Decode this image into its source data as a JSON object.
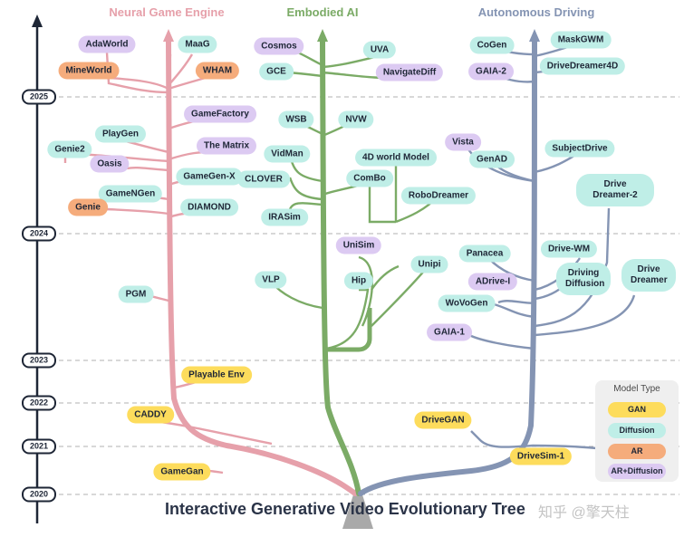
{
  "title": "Interactive Generative Video Evolutionary Tree",
  "watermark": "知乎 @擎天柱",
  "branches": {
    "neural": {
      "title": "Neural Game Engine",
      "color": "#e6a0aa"
    },
    "embodied": {
      "title": "Embodied AI",
      "color": "#7bab66"
    },
    "driving": {
      "title": "Autonomous Driving",
      "color": "#8494b3"
    }
  },
  "years": [
    "2025",
    "2024",
    "2023",
    "2022",
    "2021",
    "2020"
  ],
  "legend": {
    "title": "Model Type",
    "items": [
      {
        "label": "GAN",
        "type": "gan"
      },
      {
        "label": "Diffusion",
        "type": "diffusion"
      },
      {
        "label": "AR",
        "type": "ar"
      },
      {
        "label": "AR+Diffusion",
        "type": "ardiff"
      }
    ]
  },
  "nodes": {
    "adaworld": {
      "label": "AdaWorld",
      "type": "ardiff"
    },
    "maag": {
      "label": "MaaG",
      "type": "diffusion"
    },
    "mineworld": {
      "label": "MineWorld",
      "type": "ar"
    },
    "wham": {
      "label": "WHAM",
      "type": "ar"
    },
    "gamefactory": {
      "label": "GameFactory",
      "type": "ardiff"
    },
    "genie2": {
      "label": "Genie2",
      "type": "diffusion"
    },
    "playgen": {
      "label": "PlayGen",
      "type": "diffusion"
    },
    "thematrix": {
      "label": "The Matrix",
      "type": "ardiff"
    },
    "oasis": {
      "label": "Oasis",
      "type": "ardiff"
    },
    "gamegenx": {
      "label": "GameGen-X",
      "type": "diffusion"
    },
    "gamengen": {
      "label": "GameNGen",
      "type": "diffusion"
    },
    "genie": {
      "label": "Genie",
      "type": "ar"
    },
    "diamond": {
      "label": "DIAMOND",
      "type": "diffusion"
    },
    "pgm": {
      "label": "PGM",
      "type": "diffusion"
    },
    "playableenv": {
      "label": "Playable Env",
      "type": "gan"
    },
    "caddy": {
      "label": "CADDY",
      "type": "gan"
    },
    "gamegan": {
      "label": "GameGan",
      "type": "gan"
    },
    "cosmos": {
      "label": "Cosmos",
      "type": "ardiff"
    },
    "uva": {
      "label": "UVA",
      "type": "diffusion"
    },
    "gce": {
      "label": "GCE",
      "type": "diffusion"
    },
    "navigatediff": {
      "label": "NavigateDiff",
      "type": "ardiff"
    },
    "wsb": {
      "label": "WSB",
      "type": "diffusion"
    },
    "nvw": {
      "label": "NVW",
      "type": "diffusion"
    },
    "vidman": {
      "label": "VidMan",
      "type": "diffusion"
    },
    "clover": {
      "label": "CLOVER",
      "type": "diffusion"
    },
    "world4d": {
      "label": "4D world Model",
      "type": "diffusion"
    },
    "combo": {
      "label": "ComBo",
      "type": "diffusion"
    },
    "robodreamer": {
      "label": "RoboDreamer",
      "type": "diffusion"
    },
    "irasim": {
      "label": "IRASim",
      "type": "diffusion"
    },
    "unisim": {
      "label": "UniSim",
      "type": "ardiff"
    },
    "unipi": {
      "label": "Unipi",
      "type": "diffusion"
    },
    "hip": {
      "label": "Hip",
      "type": "diffusion"
    },
    "vlp": {
      "label": "VLP",
      "type": "diffusion"
    },
    "cogen": {
      "label": "CoGen",
      "type": "diffusion"
    },
    "maskgwm": {
      "label": "MaskGWM",
      "type": "diffusion"
    },
    "gaia2": {
      "label": "GAIA-2",
      "type": "ardiff"
    },
    "drivedreamer4d": {
      "label": "DriveDreamer4D",
      "type": "diffusion"
    },
    "vista": {
      "label": "Vista",
      "type": "ardiff"
    },
    "genad": {
      "label": "GenAD",
      "type": "diffusion"
    },
    "subjectdrive": {
      "label": "SubjectDrive",
      "type": "diffusion"
    },
    "drivedreamer2": {
      "label": "Drive Dreamer-2",
      "type": "diffusion"
    },
    "panacea": {
      "label": "Panacea",
      "type": "diffusion"
    },
    "drivewm": {
      "label": "Drive-WM",
      "type": "diffusion"
    },
    "adrivei": {
      "label": "ADrive-I",
      "type": "ardiff"
    },
    "drivingdiffusion": {
      "label": "Driving Diffusion",
      "type": "diffusion"
    },
    "drivedreamer": {
      "label": "Drive Dreamer",
      "type": "diffusion"
    },
    "wovogen": {
      "label": "WoVoGen",
      "type": "diffusion"
    },
    "gaia1": {
      "label": "GAIA-1",
      "type": "ardiff"
    },
    "drivegan": {
      "label": "DriveGAN",
      "type": "gan"
    },
    "drivesim1": {
      "label": "DriveSim-1",
      "type": "gan"
    }
  }
}
